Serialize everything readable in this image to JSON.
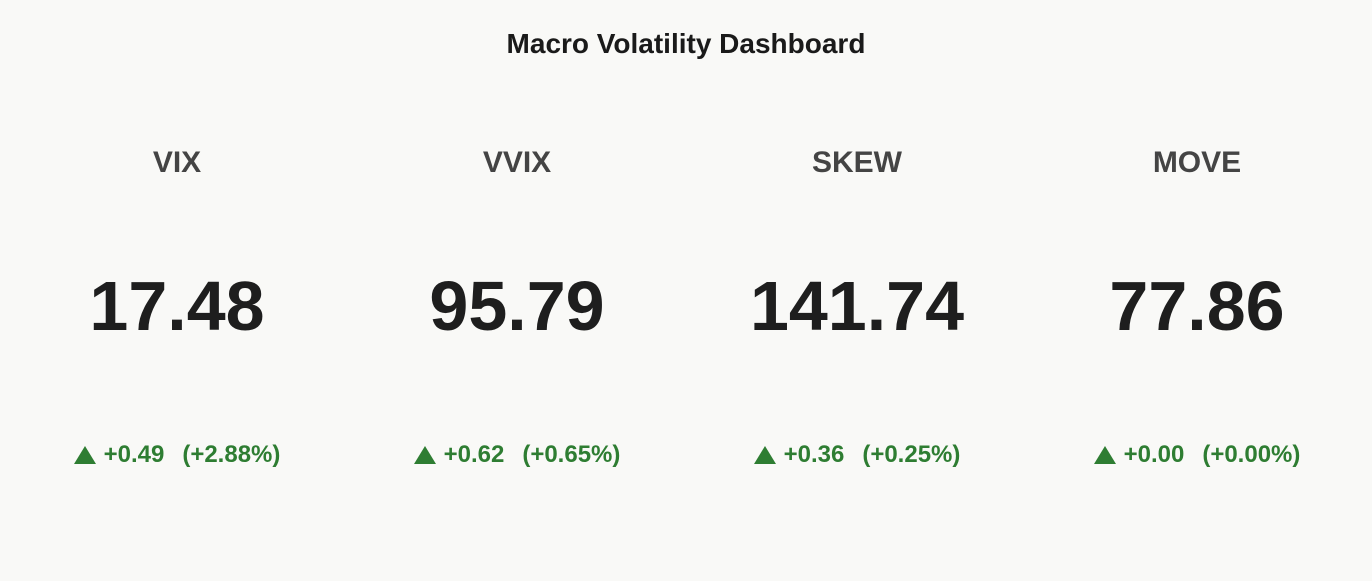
{
  "chart_data": {
    "type": "indicator",
    "title": "Macro Volatility Dashboard",
    "categories": [
      "VIX",
      "VVIX",
      "SKEW",
      "MOVE"
    ],
    "values": [
      17.48,
      95.79,
      141.74,
      77.86
    ],
    "delta": {
      "values": [
        0.49,
        0.62,
        0.36,
        0
      ],
      "value_labels": [
        "+0.49",
        "+0.62",
        "+0.36",
        "+0.00"
      ]
    },
    "delta_pct": {
      "values": [
        2.88,
        0.65,
        0.25,
        0
      ],
      "value_labels": [
        "(+2.88%)",
        "(+0.65%)",
        "(+0.25%)",
        "(+0.00%)"
      ]
    },
    "delta_color": "#2e7d32"
  }
}
